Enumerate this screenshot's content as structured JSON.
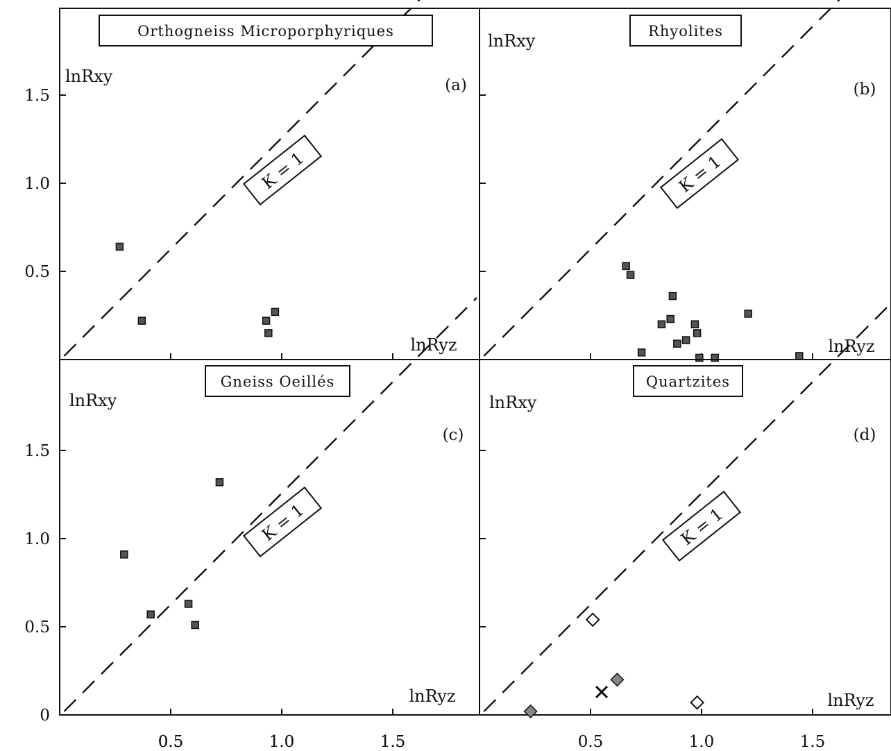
{
  "chart_data": [
    {
      "type": "scatter",
      "title": "Orthogneiss Microporphyriques",
      "panel": "(a)",
      "xlabel": "lnRyz",
      "ylabel": "lnRxy",
      "xlim": [
        0,
        1.9
      ],
      "ylim": [
        0,
        1.95
      ],
      "x_ticks": [
        "0.5",
        "1.0",
        "1.5"
      ],
      "y_ticks": [
        "0.5",
        "1.0",
        "1.5"
      ],
      "reference_line": {
        "label": "K = 1",
        "style": "dashed",
        "equation": "y = x"
      },
      "series": [
        {
          "marker": "filled-square",
          "points": [
            [
              0.27,
              0.64
            ],
            [
              0.37,
              0.22
            ],
            [
              0.93,
              0.22
            ],
            [
              0.94,
              0.15
            ],
            [
              0.97,
              0.27
            ]
          ]
        }
      ]
    },
    {
      "type": "scatter",
      "title": "Rhyolites",
      "panel": "(b)",
      "xlabel": "lnRyz",
      "ylabel": "lnRxy",
      "xlim": [
        0,
        1.9
      ],
      "ylim": [
        0,
        1.95
      ],
      "x_ticks": [],
      "y_ticks": [],
      "reference_line": {
        "label": "K = 1",
        "style": "dashed",
        "equation": "y = x"
      },
      "series": [
        {
          "marker": "filled-square",
          "points": [
            [
              0.66,
              0.53
            ],
            [
              0.68,
              0.48
            ],
            [
              0.87,
              0.36
            ],
            [
              0.82,
              0.2
            ],
            [
              0.86,
              0.23
            ],
            [
              0.97,
              0.2
            ],
            [
              0.98,
              0.15
            ],
            [
              0.89,
              0.09
            ],
            [
              0.93,
              0.11
            ],
            [
              0.73,
              0.04
            ],
            [
              0.99,
              0.01
            ],
            [
              1.06,
              0.01
            ],
            [
              1.21,
              0.26
            ],
            [
              1.44,
              0.02
            ]
          ]
        }
      ]
    },
    {
      "type": "scatter",
      "title": "Gneiss Oeillés",
      "panel": "(c)",
      "xlabel": "lnRyz",
      "ylabel": "lnRxy",
      "xlim": [
        0,
        1.9
      ],
      "ylim": [
        0,
        1.95
      ],
      "x_ticks": [
        "0.5",
        "1.0",
        "1.5"
      ],
      "y_ticks": [
        "0",
        "0.5",
        "1.0",
        "1.5"
      ],
      "reference_line": {
        "label": "K = 1",
        "style": "dashed",
        "equation": "y = x"
      },
      "series": [
        {
          "marker": "filled-square",
          "points": [
            [
              0.29,
              0.91
            ],
            [
              0.41,
              0.57
            ],
            [
              0.58,
              0.63
            ],
            [
              0.61,
              0.51
            ],
            [
              0.72,
              1.32
            ]
          ]
        }
      ]
    },
    {
      "type": "scatter",
      "title": "Quartzites",
      "panel": "(d)",
      "xlabel": "lnRyz",
      "ylabel": "lnRxy",
      "xlim": [
        0,
        1.9
      ],
      "ylim": [
        0,
        1.95
      ],
      "x_ticks": [
        "0.5",
        "1.0",
        "1.5"
      ],
      "y_ticks": [],
      "reference_line": {
        "label": "K = 1",
        "style": "dashed",
        "equation": "y = x"
      },
      "series": [
        {
          "marker": "open-diamond",
          "points": [
            [
              0.51,
              0.54
            ],
            [
              0.98,
              0.07
            ]
          ]
        },
        {
          "marker": "filled-diamond",
          "points": [
            [
              0.23,
              0.02
            ],
            [
              0.62,
              0.2
            ]
          ]
        },
        {
          "marker": "cross",
          "points": [
            [
              0.55,
              0.13
            ]
          ]
        }
      ]
    }
  ]
}
